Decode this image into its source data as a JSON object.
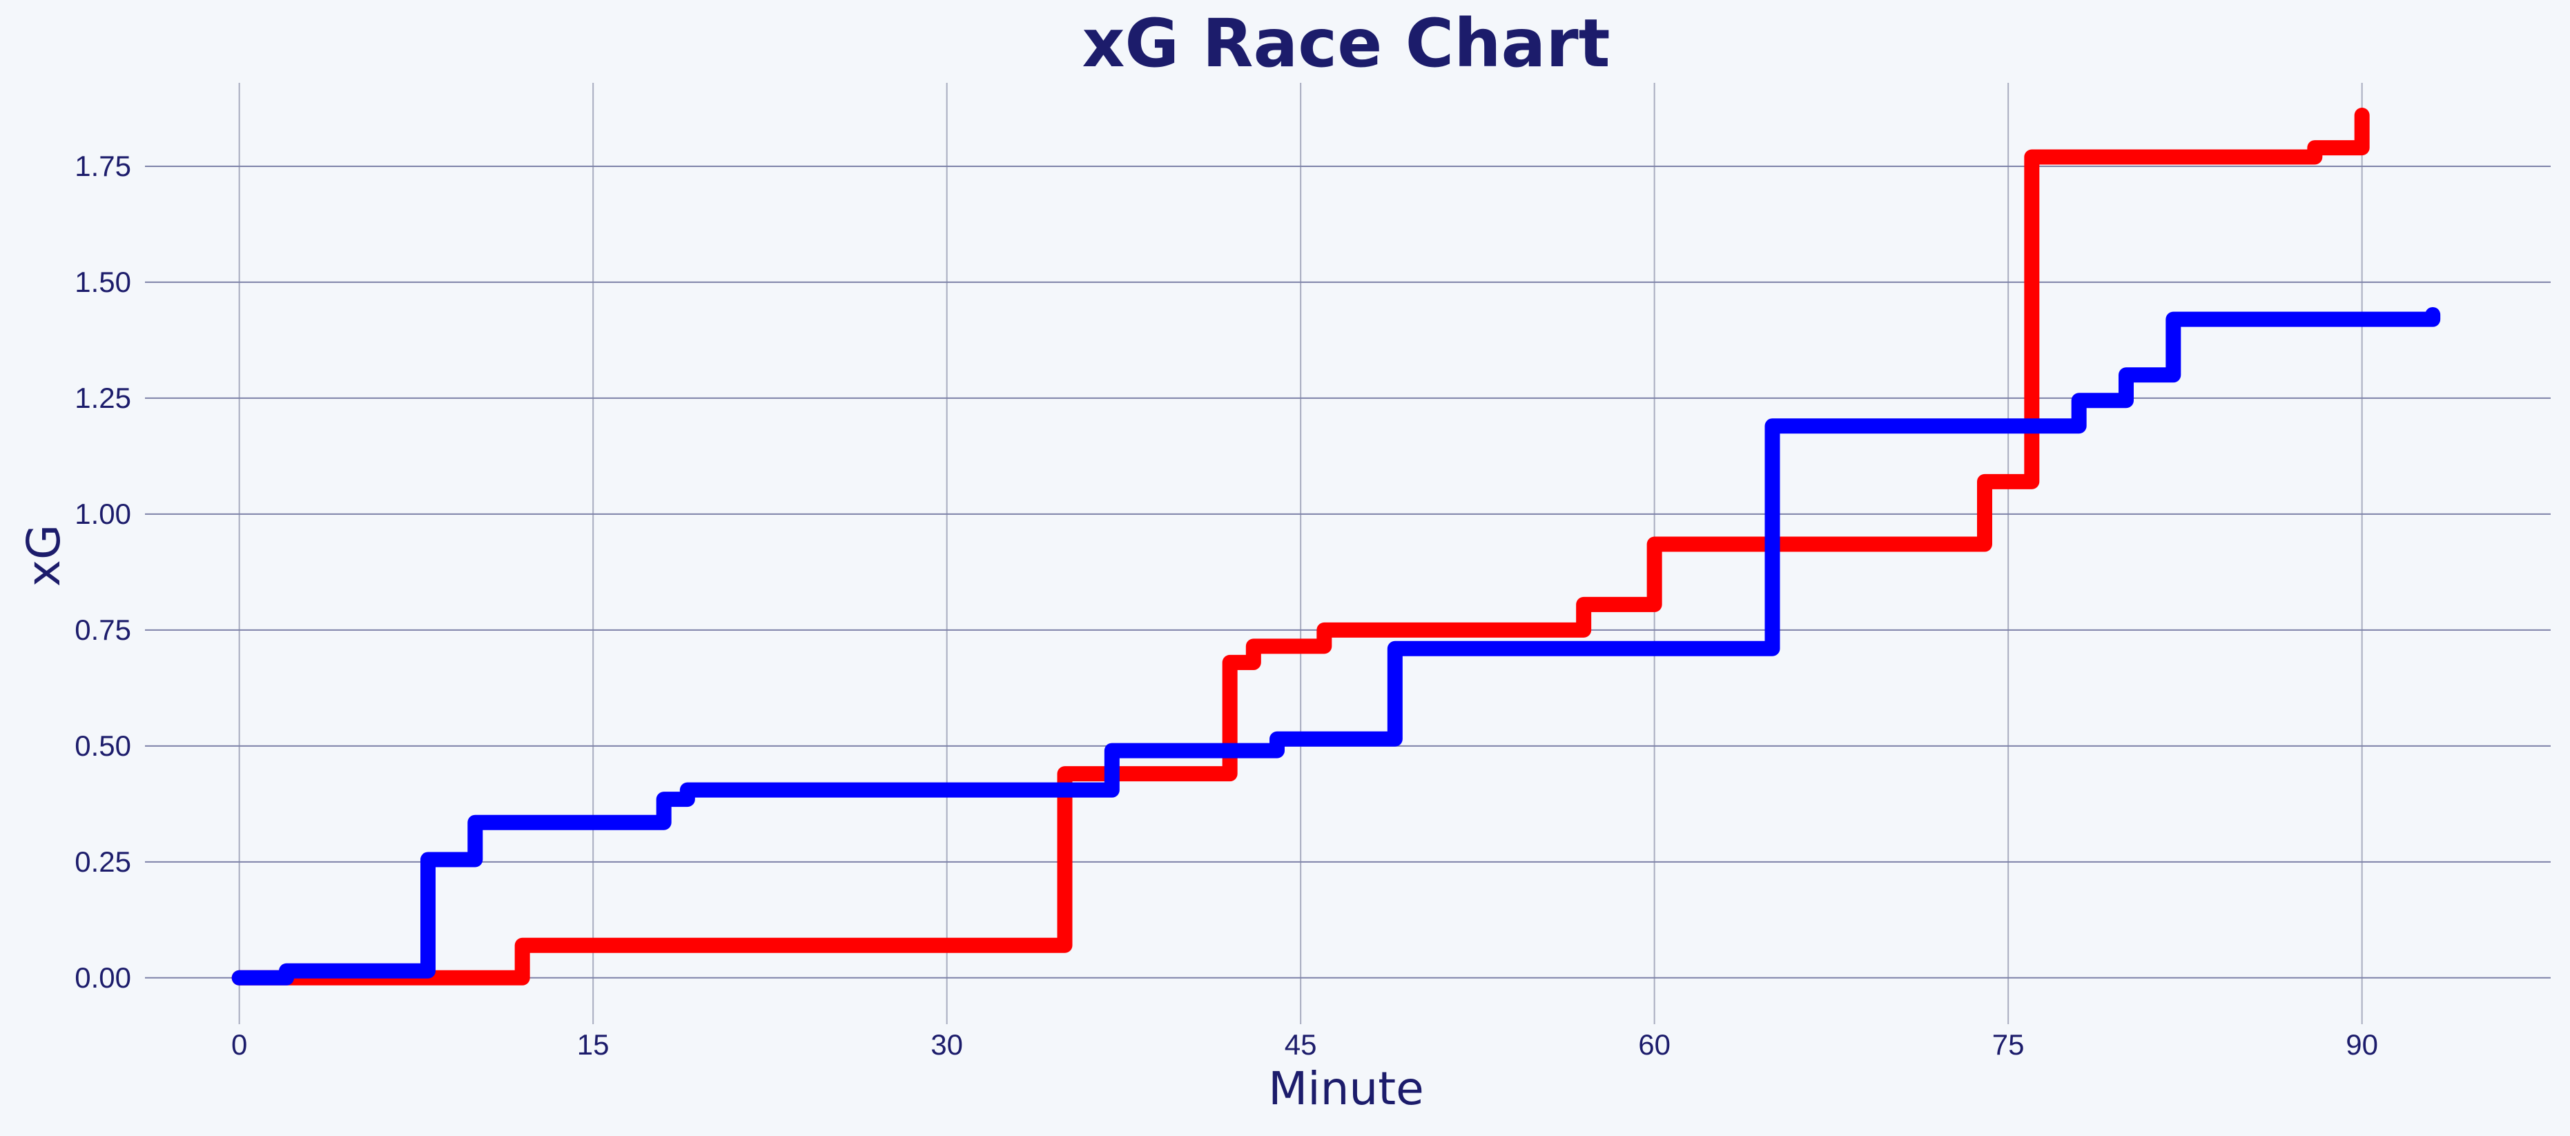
{
  "chart_data": {
    "type": "line",
    "title": "xG Race Chart",
    "xlabel": "Minute",
    "ylabel": "xG",
    "xlim": [
      -4,
      98
    ],
    "ylim": [
      -0.1,
      1.93
    ],
    "xticks": [
      0,
      15,
      30,
      45,
      60,
      75,
      90
    ],
    "xtick_labels": [
      "0",
      "15",
      "30",
      "45",
      "60",
      "75",
      "90"
    ],
    "yticks": [
      0,
      0.25,
      0.5,
      0.75,
      1.0,
      1.25,
      1.5,
      1.75
    ],
    "ytick_labels": [
      "0.00",
      "0.25",
      "0.50",
      "0.75",
      "1.00",
      "1.25",
      "1.50",
      "1.75"
    ],
    "grid": true,
    "step": "post",
    "series": [
      {
        "color": "#ff0000",
        "x": [
          0,
          12,
          35,
          42,
          43,
          46,
          57,
          60,
          74,
          76,
          88,
          90,
          90
        ],
        "y": [
          0,
          0.07,
          0.44,
          0.68,
          0.715,
          0.75,
          0.805,
          0.935,
          1.07,
          1.77,
          1.79,
          1.86,
          1.86
        ]
      },
      {
        "color": "#0000ff",
        "x": [
          0,
          2,
          8,
          10,
          18,
          19,
          37,
          44,
          49,
          65,
          78,
          80,
          82,
          93,
          93
        ],
        "y": [
          0,
          0.015,
          0.255,
          0.335,
          0.385,
          0.405,
          0.49,
          0.515,
          0.71,
          1.19,
          1.245,
          1.3,
          1.42,
          1.43,
          1.43
        ]
      }
    ]
  }
}
